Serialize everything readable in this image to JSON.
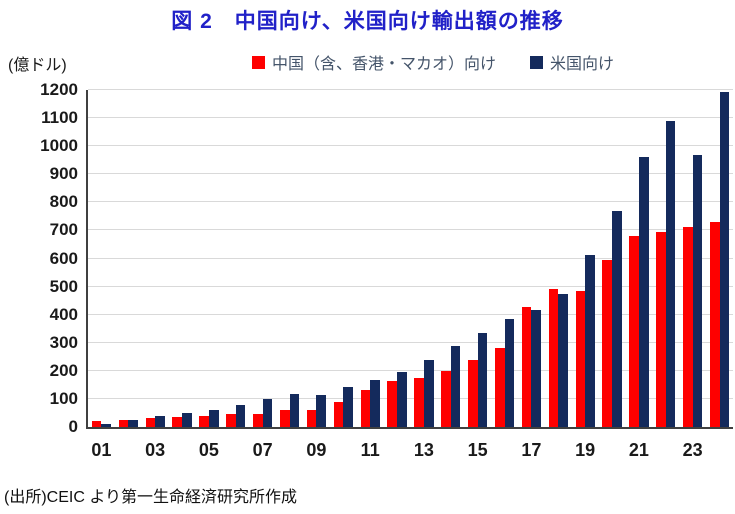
{
  "chart_data": {
    "type": "bar",
    "title": "図 2　中国向け、米国向け輸出額の推移",
    "unit_label": "(億ドル)",
    "source_note": "(出所)CEIC より第一生命経済研究所作成",
    "categories": [
      "01",
      "02",
      "03",
      "04",
      "05",
      "06",
      "07",
      "08",
      "09",
      "10",
      "11",
      "12",
      "13",
      "14",
      "15",
      "16",
      "17",
      "18",
      "19",
      "20",
      "21",
      "22",
      "23",
      "24"
    ],
    "xtick_labels": [
      "01",
      "03",
      "05",
      "07",
      "09",
      "11",
      "13",
      "15",
      "17",
      "19",
      "21",
      "23"
    ],
    "series": [
      {
        "name": "中国（含、香港・マカオ）向け",
        "color": "#fe0000",
        "values": [
          20,
          26,
          31,
          35,
          40,
          45,
          46,
          59,
          60,
          88,
          133,
          163,
          174,
          201,
          240,
          280,
          429,
          492,
          486,
          594,
          679,
          695,
          711,
          731
        ]
      },
      {
        "name": "米国向け",
        "color": "#142a5c",
        "values": [
          11,
          25,
          39,
          50,
          59,
          79,
          101,
          119,
          114,
          142,
          169,
          197,
          239,
          287,
          335,
          385,
          416,
          475,
          613,
          770,
          962,
          1091,
          968,
          1192
        ]
      }
    ],
    "ylim": [
      0,
      1200
    ],
    "yticks": [
      0,
      100,
      200,
      300,
      400,
      500,
      600,
      700,
      800,
      900,
      1000,
      1100,
      1200
    ],
    "grid": true,
    "legend_position": "top",
    "colors": {
      "title": "#2121c8",
      "legend_text": "#44546a",
      "grid": "#d9d9d9",
      "axis": "#404040",
      "tick_text": "#1a1a1a"
    }
  }
}
